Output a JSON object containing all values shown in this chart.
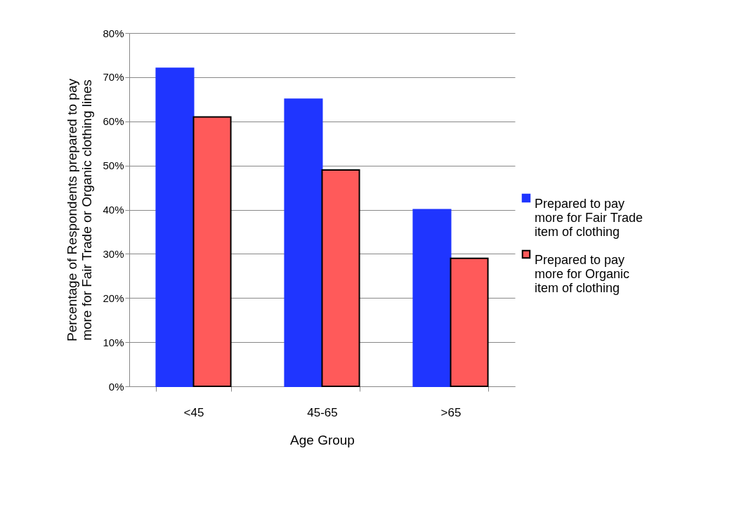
{
  "chart_data": {
    "type": "bar",
    "xlabel": "Age Group",
    "ylabel": "Percentage of Respondents prepared to pay more for Fair Trade or Organic clothing lines",
    "categories": [
      "<45",
      "45-65",
      ">65"
    ],
    "series": [
      {
        "name": "Prepared to pay more for Fair Trade item of clothing",
        "color": "#1f35ff",
        "values": [
          72,
          65,
          40
        ]
      },
      {
        "name": "Prepared to pay more for Organic item of clothing",
        "color": "#ff5a5a",
        "values": [
          61,
          49,
          29
        ]
      }
    ],
    "ylim": [
      0,
      80
    ],
    "yticks": [
      {
        "value": 0,
        "label": "0%"
      },
      {
        "value": 10,
        "label": "10%"
      },
      {
        "value": 20,
        "label": "20%"
      },
      {
        "value": 30,
        "label": "30%"
      },
      {
        "value": 40,
        "label": "40%"
      },
      {
        "value": 50,
        "label": "50%"
      },
      {
        "value": 60,
        "label": "60%"
      },
      {
        "value": 70,
        "label": "70%"
      },
      {
        "value": 80,
        "label": "80%"
      }
    ],
    "grid": "y",
    "legend": "right"
  }
}
